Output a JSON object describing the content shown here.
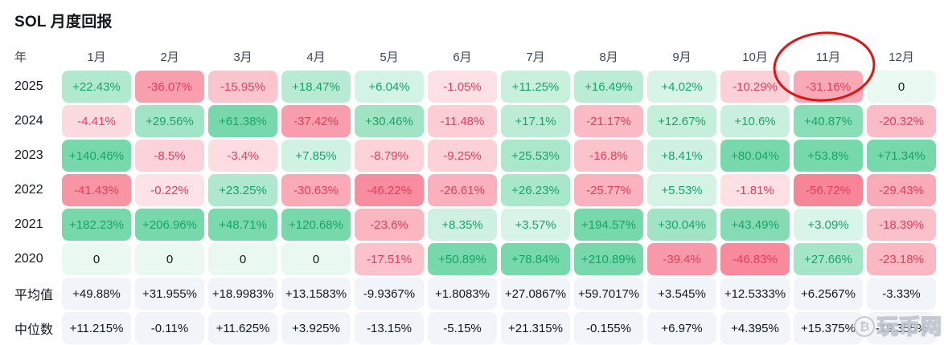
{
  "title": "SOL 月度回报",
  "chart_data": {
    "type": "table",
    "title": "SOL 月度回报",
    "row_header_label": "年",
    "columns": [
      "1月",
      "2月",
      "3月",
      "4月",
      "5月",
      "6月",
      "7月",
      "8月",
      "9月",
      "10月",
      "11月",
      "12月"
    ],
    "rows": [
      {
        "label": "2025",
        "kind": "year",
        "values": [
          "+22.43%",
          "-36.07%",
          "-15.95%",
          "+18.47%",
          "+6.04%",
          "-1.05%",
          "+11.25%",
          "+16.49%",
          "+4.02%",
          "-10.29%",
          "-31.16%",
          "0"
        ]
      },
      {
        "label": "2024",
        "kind": "year",
        "values": [
          "-4.41%",
          "+29.56%",
          "+61.38%",
          "-37.42%",
          "+30.46%",
          "-11.48%",
          "+17.1%",
          "-21.17%",
          "+12.67%",
          "+10.6%",
          "+40.87%",
          "-20.32%"
        ]
      },
      {
        "label": "2023",
        "kind": "year",
        "values": [
          "+140.46%",
          "-8.5%",
          "-3.4%",
          "+7.85%",
          "-8.79%",
          "-9.25%",
          "+25.53%",
          "-16.8%",
          "+8.41%",
          "+80.04%",
          "+53.8%",
          "+71.34%"
        ]
      },
      {
        "label": "2022",
        "kind": "year",
        "values": [
          "-41.43%",
          "-0.22%",
          "+23.25%",
          "-30.63%",
          "-46.22%",
          "-26.61%",
          "+26.23%",
          "-25.77%",
          "+5.53%",
          "-1.81%",
          "-56.72%",
          "-29.43%"
        ]
      },
      {
        "label": "2021",
        "kind": "year",
        "values": [
          "+182.23%",
          "+206.96%",
          "+48.71%",
          "+120.68%",
          "-23.6%",
          "+8.35%",
          "+3.57%",
          "+194.57%",
          "+30.04%",
          "+43.49%",
          "+3.09%",
          "-18.39%"
        ]
      },
      {
        "label": "2020",
        "kind": "year",
        "values": [
          "0",
          "0",
          "0",
          "0",
          "-17.51%",
          "+50.89%",
          "+78.84%",
          "+210.89%",
          "-39.4%",
          "-46.83%",
          "+27.66%",
          "-23.18%"
        ]
      },
      {
        "label": "平均值",
        "kind": "stat",
        "values": [
          "+49.88%",
          "+31.955%",
          "+18.9983%",
          "+13.1583%",
          "-9.9367%",
          "+1.8083%",
          "+27.0867%",
          "+59.7017%",
          "+3.545%",
          "+12.5333%",
          "+6.2567%",
          "-3.33%"
        ]
      },
      {
        "label": "中位数",
        "kind": "stat",
        "values": [
          "+11.215%",
          "-0.11%",
          "+11.625%",
          "+3.925%",
          "-13.15%",
          "-5.15%",
          "+21.315%",
          "-0.155%",
          "+6.97%",
          "+4.395%",
          "+15.375%",
          "-19.355%"
        ]
      }
    ]
  },
  "annotation": {
    "shape": "red-ellipse",
    "highlighted_column": "11月",
    "highlighted_row": "2025",
    "highlighted_value": "-31.16%"
  },
  "watermark": {
    "icon": "bitcoin-icon",
    "text": "玩币网"
  },
  "colors": {
    "positive_text": "#16a567",
    "negative_text": "#e63e59",
    "positive_base": "#2ec47e",
    "negative_base": "#f24460",
    "stat_bg": "#f1f4f9",
    "zero_bg": "#e9f8f0",
    "annotation_stroke": "#e01414"
  }
}
